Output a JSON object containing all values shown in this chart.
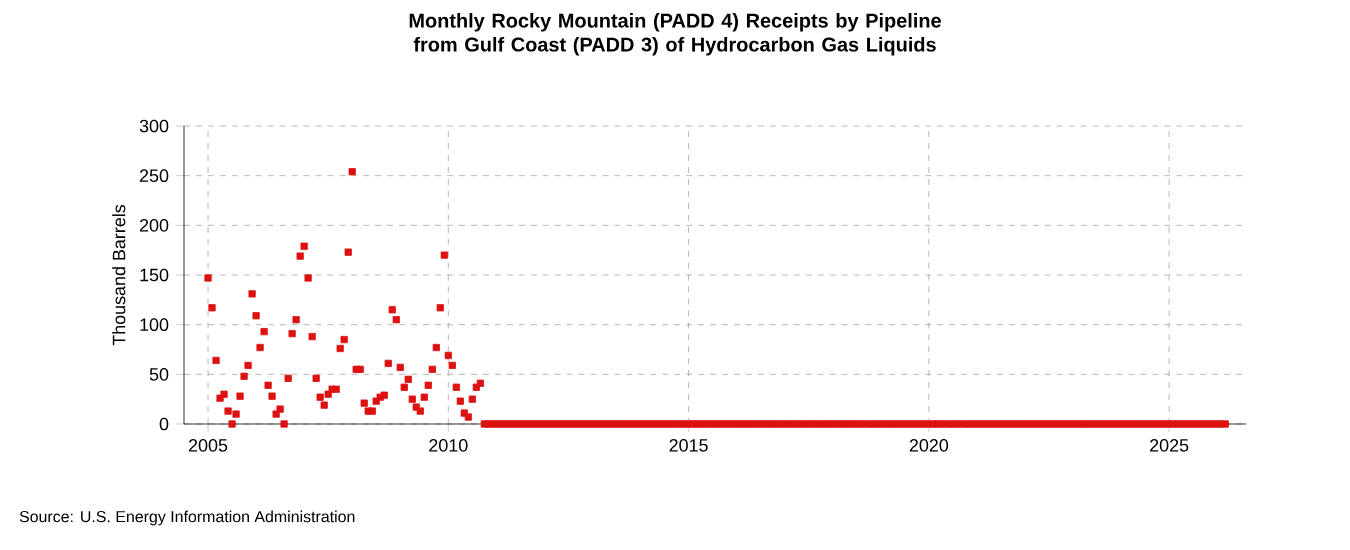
{
  "chart_data": {
    "type": "scatter",
    "title": "Monthly Rocky Mountain (PADD 4) Receipts by Pipeline from Gulf Coast (PADD 3) of Hydrocarbon Gas Liquids",
    "ylabel": "Thousand Barrels",
    "annotations": [
      "Source: U.S. Energy Information Administration"
    ],
    "color": "#dd1111",
    "marker": "square",
    "grid": true,
    "xlim": [
      2004.5,
      2026.6
    ],
    "xticks": [
      2005,
      2010,
      2015,
      2020,
      2025
    ],
    "ylim": [
      0,
      300
    ],
    "yticks": [
      0,
      50,
      100,
      150,
      200,
      250,
      300
    ],
    "x": [
      2005.0,
      2005.083,
      2005.167,
      2005.25,
      2005.333,
      2005.417,
      2005.5,
      2005.583,
      2005.667,
      2005.75,
      2005.833,
      2005.917,
      2006.0,
      2006.083,
      2006.167,
      2006.25,
      2006.333,
      2006.417,
      2006.5,
      2006.583,
      2006.667,
      2006.75,
      2006.833,
      2006.917,
      2007.0,
      2007.083,
      2007.167,
      2007.25,
      2007.333,
      2007.417,
      2007.5,
      2007.583,
      2007.667,
      2007.75,
      2007.833,
      2007.917,
      2008.0,
      2008.083,
      2008.167,
      2008.25,
      2008.333,
      2008.417,
      2008.5,
      2008.583,
      2008.667,
      2008.75,
      2008.833,
      2008.917,
      2009.0,
      2009.083,
      2009.167,
      2009.25,
      2009.333,
      2009.417,
      2009.5,
      2009.583,
      2009.667,
      2009.75,
      2009.833,
      2009.917,
      2010.0,
      2010.083,
      2010.167,
      2010.25,
      2010.333,
      2010.417,
      2010.5,
      2010.583,
      2010.667,
      2010.75,
      2010.833,
      2010.917,
      2011.0,
      2011.083,
      2011.167,
      2011.25,
      2011.333,
      2011.417,
      2011.5,
      2011.583,
      2011.667,
      2011.75,
      2011.833,
      2011.917,
      2012.0,
      2012.083,
      2012.167,
      2012.25,
      2012.333,
      2012.417,
      2012.5,
      2012.583,
      2012.667,
      2012.75,
      2012.833,
      2012.917,
      2013.0,
      2013.083,
      2013.167,
      2013.25,
      2013.333,
      2013.417,
      2013.5,
      2013.583,
      2013.667,
      2013.75,
      2013.833,
      2013.917,
      2014.0,
      2014.083,
      2014.167,
      2014.25,
      2014.333,
      2014.417,
      2014.5,
      2014.583,
      2014.667,
      2014.75,
      2014.833,
      2014.917,
      2015.0,
      2015.083,
      2015.167,
      2015.25,
      2015.333,
      2015.417,
      2015.5,
      2015.583,
      2015.667,
      2015.75,
      2015.833,
      2015.917,
      2016.0,
      2016.083,
      2016.167,
      2016.25,
      2016.333,
      2016.417,
      2016.5,
      2016.583,
      2016.667,
      2016.75,
      2016.833,
      2016.917,
      2017.0,
      2017.083,
      2017.167,
      2017.25,
      2017.333,
      2017.417,
      2017.5,
      2017.583,
      2017.667,
      2017.75,
      2017.833,
      2017.917,
      2018.0,
      2018.083,
      2018.167,
      2018.25,
      2018.333,
      2018.417,
      2018.5,
      2018.583,
      2018.667,
      2018.75,
      2018.833,
      2018.917,
      2019.0,
      2019.083,
      2019.167,
      2019.25,
      2019.333,
      2019.417,
      2019.5,
      2019.583,
      2019.667,
      2019.75,
      2019.833,
      2019.917,
      2020.0,
      2020.083,
      2020.167,
      2020.25,
      2020.333,
      2020.417,
      2020.5,
      2020.583,
      2020.667,
      2020.75,
      2020.833,
      2020.917,
      2021.0,
      2021.083,
      2021.167,
      2021.25,
      2021.333,
      2021.417,
      2021.5,
      2021.583,
      2021.667,
      2021.75,
      2021.833,
      2021.917,
      2022.0,
      2022.083,
      2022.167,
      2022.25,
      2022.333,
      2022.417,
      2022.5,
      2022.583,
      2022.667,
      2022.75,
      2022.833,
      2022.917,
      2023.0,
      2023.083,
      2023.167,
      2023.25,
      2023.333,
      2023.417,
      2023.5,
      2023.583,
      2023.667,
      2023.75,
      2023.833,
      2023.917,
      2024.0,
      2024.083,
      2024.167,
      2024.25,
      2024.333,
      2024.417,
      2024.5,
      2024.583,
      2024.667,
      2024.75,
      2024.833,
      2024.917,
      2025.0,
      2025.083,
      2025.167,
      2025.25,
      2025.333,
      2025.417,
      2025.5,
      2025.583,
      2025.667,
      2025.75,
      2025.833,
      2025.917,
      2026.0,
      2026.083,
      2026.167
    ],
    "values": [
      147,
      117,
      64,
      26,
      30,
      13,
      0,
      10,
      28,
      48,
      59,
      131,
      109,
      77,
      93,
      39,
      28,
      10,
      15,
      0,
      46,
      91,
      105,
      169,
      179,
      147,
      88,
      46,
      27,
      19,
      30,
      35,
      35,
      76,
      85,
      173,
      254,
      55,
      55,
      21,
      13,
      13,
      23,
      27,
      29,
      61,
      115,
      105,
      57,
      37,
      45,
      25,
      17,
      13,
      27,
      39,
      55,
      77,
      117,
      170,
      69,
      59,
      37,
      23,
      11,
      7,
      25,
      37,
      41,
      0,
      0,
      0,
      0,
      0,
      0,
      0,
      0,
      0,
      0,
      0,
      0,
      0,
      0,
      0,
      0,
      0,
      0,
      0,
      0,
      0,
      0,
      0,
      0,
      0,
      0,
      0,
      0,
      0,
      0,
      0,
      0,
      0,
      0,
      0,
      0,
      0,
      0,
      0,
      0,
      0,
      0,
      0,
      0,
      0,
      0,
      0,
      0,
      0,
      0,
      0,
      0,
      0,
      0,
      0,
      0,
      0,
      0,
      0,
      0,
      0,
      0,
      0,
      0,
      0,
      0,
      0,
      0,
      0,
      0,
      0,
      0,
      0,
      0,
      0,
      0,
      0,
      0,
      0,
      0,
      0,
      0,
      0,
      0,
      0,
      0,
      0,
      0,
      0,
      0,
      0,
      0,
      0,
      0,
      0,
      0,
      0,
      0,
      0,
      0,
      0,
      0,
      0,
      0,
      0,
      0,
      0,
      0,
      0,
      0,
      0,
      0,
      0,
      0,
      0,
      0,
      0,
      0,
      0,
      0,
      0,
      0,
      0,
      0,
      0,
      0,
      0,
      0,
      0,
      0,
      0,
      0,
      0,
      0,
      0,
      0,
      0,
      0,
      0,
      0,
      0,
      0,
      0,
      0,
      0,
      0,
      0,
      0,
      0,
      0,
      0,
      0,
      0,
      0,
      0,
      0,
      0,
      0,
      0,
      0,
      0,
      0,
      0,
      0,
      0,
      0,
      0,
      0,
      0,
      0,
      0,
      0,
      0,
      0,
      0,
      0,
      0,
      0,
      0,
      0,
      0,
      0,
      0,
      0,
      0,
      0
    ]
  }
}
